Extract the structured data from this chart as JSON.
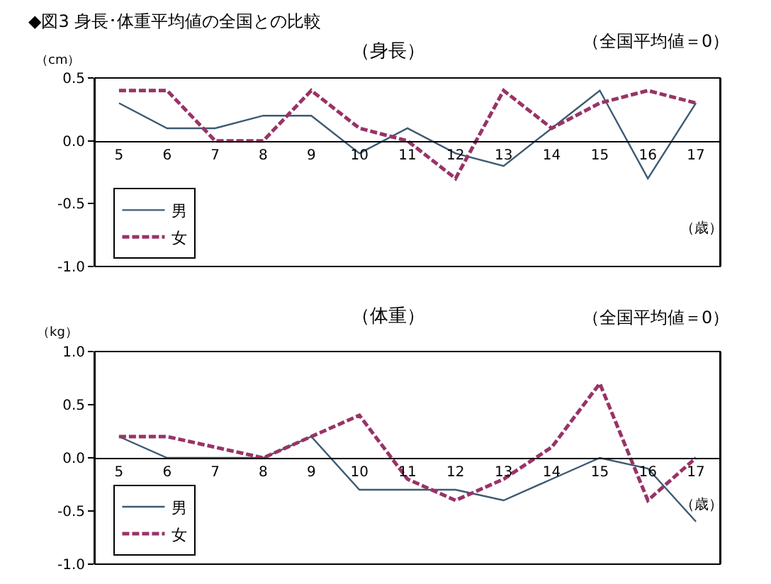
{
  "chart_data": [
    {
      "type": "line",
      "title": "◆図3 身長･体重平均値の全国との比較",
      "subtitle": "（身長）",
      "ylabel": "（cm）",
      "xlabel": "（歳）",
      "annotations": [
        "（全国平均値＝0）"
      ],
      "categories": [
        "5",
        "6",
        "7",
        "8",
        "9",
        "10",
        "11",
        "12",
        "13",
        "14",
        "15",
        "16",
        "17"
      ],
      "series": [
        {
          "name": "男",
          "color": "#3d5a73",
          "line_style": "solid",
          "values": [
            0.3,
            0.1,
            0.1,
            0.2,
            0.2,
            -0.1,
            0.1,
            -0.1,
            -0.2,
            0.1,
            0.4,
            -0.3,
            0.3
          ]
        },
        {
          "name": "女",
          "color": "#993366",
          "line_style": "dashed",
          "values": [
            0.4,
            0.4,
            0,
            0,
            0.4,
            0.1,
            0,
            -0.3,
            0.4,
            0.1,
            0.3,
            0.4,
            0.3
          ]
        }
      ],
      "ylim": [
        -1,
        0.5
      ],
      "yticks": [
        {
          "value": -1,
          "label": "-1.0"
        },
        {
          "value": -0.5,
          "label": "-0.5"
        },
        {
          "value": 0,
          "label": "0.0"
        },
        {
          "value": 0.5,
          "label": "0.5"
        }
      ],
      "grid": false,
      "legend": "bottom left",
      "marker": "none"
    },
    {
      "type": "line",
      "title": "（体重）",
      "ylabel": "（kg）",
      "xlabel": "（歳）",
      "annotations": [
        "（全国平均値＝0）"
      ],
      "categories": [
        "5",
        "6",
        "7",
        "8",
        "9",
        "10",
        "11",
        "12",
        "13",
        "14",
        "15",
        "16",
        "17"
      ],
      "series": [
        {
          "name": "男",
          "color": "#3d5a73",
          "line_style": "solid",
          "values": [
            0.2,
            0,
            0,
            0,
            0.2,
            -0.3,
            -0.3,
            -0.3,
            -0.4,
            -0.2,
            0,
            -0.1,
            -0.6
          ]
        },
        {
          "name": "女",
          "color": "#993366",
          "line_style": "dashed",
          "values": [
            0.2,
            0.2,
            0.1,
            0,
            0.2,
            0.4,
            -0.2,
            -0.4,
            -0.2,
            0.1,
            0.7,
            -0.4,
            0
          ]
        }
      ],
      "ylim": [
        -1,
        1
      ],
      "yticks": [
        {
          "value": -1,
          "label": "-1.0"
        },
        {
          "value": -0.5,
          "label": "-0.5"
        },
        {
          "value": 0,
          "label": "0.0"
        },
        {
          "value": 0.5,
          "label": "0.5"
        },
        {
          "value": 1,
          "label": "1.0"
        }
      ],
      "grid": false,
      "legend": "bottom left",
      "marker": "none"
    }
  ]
}
